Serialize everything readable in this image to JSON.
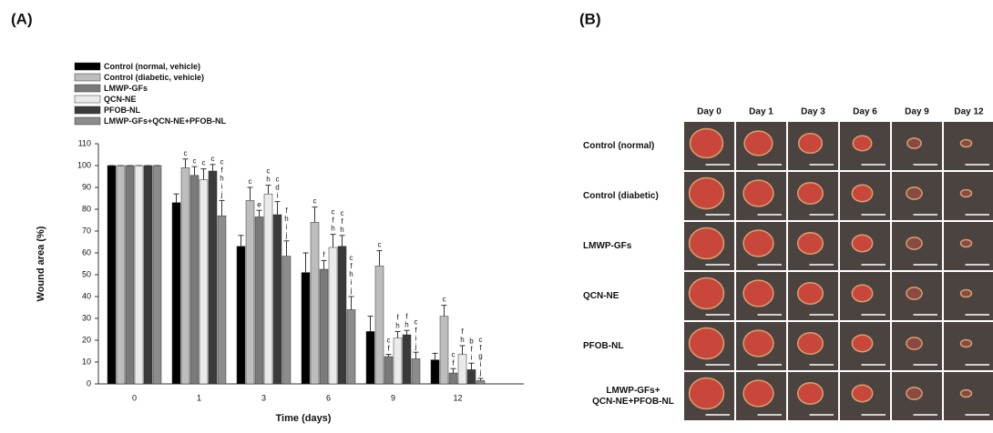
{
  "panels": {
    "a": "(A)",
    "b": "(B)"
  },
  "chart_data": {
    "type": "bar",
    "y_label": "Wound area (%)",
    "x_label": "Time (days)",
    "categories": [
      "0",
      "1",
      "3",
      "6",
      "9",
      "12"
    ],
    "ylim": [
      0,
      110
    ],
    "yticks": [
      0,
      10,
      20,
      30,
      40,
      50,
      60,
      70,
      80,
      90,
      100,
      110
    ],
    "series": [
      {
        "name": "Control (normal, vehicle)",
        "color": "#000000",
        "values": [
          100,
          83,
          63,
          51,
          24,
          11
        ],
        "errors": [
          0,
          4,
          5,
          9,
          7,
          3
        ],
        "letters": [
          null,
          null,
          null,
          null,
          null,
          null
        ]
      },
      {
        "name": "Control (diabetic, vehicle)",
        "color": "#bdbdbd",
        "values": [
          100,
          99,
          84,
          74,
          54,
          31
        ],
        "errors": [
          0,
          4,
          6,
          7,
          7,
          5
        ],
        "letters": [
          null,
          [
            "c"
          ],
          [
            "c"
          ],
          [
            "c"
          ],
          [
            "c"
          ],
          [
            "c"
          ]
        ]
      },
      {
        "name": "LMWP-GFs",
        "color": "#7a7a7a",
        "values": [
          100,
          95.5,
          76.5,
          52.5,
          12.5,
          5
        ],
        "errors": [
          0,
          4,
          3,
          4,
          1,
          2
        ],
        "letters": [
          null,
          [
            "c"
          ],
          [
            "e"
          ],
          [
            "f"
          ],
          [
            "c",
            "f"
          ],
          [
            "c",
            "f"
          ]
        ]
      },
      {
        "name": "QCN-NE",
        "color": "#eaeaea",
        "values": [
          100,
          93.5,
          87,
          62.5,
          21,
          13.5
        ],
        "errors": [
          0,
          5,
          4,
          6,
          3,
          4
        ],
        "letters": [
          null,
          [
            "c"
          ],
          [
            "c",
            "h"
          ],
          [
            "c",
            "f",
            "h"
          ],
          [
            "f",
            "h"
          ],
          [
            "f",
            "h"
          ]
        ]
      },
      {
        "name": "PFOB-NL",
        "color": "#3a3a3a",
        "values": [
          100,
          97.5,
          77.5,
          63,
          22.5,
          6.5
        ],
        "errors": [
          0,
          3,
          6,
          5,
          2,
          3
        ],
        "letters": [
          null,
          [
            "c"
          ],
          [
            "c",
            "d",
            "i"
          ],
          [
            "c",
            "f",
            "h"
          ],
          [
            "f",
            "h"
          ],
          [
            "b",
            "f",
            "i"
          ]
        ]
      },
      {
        "name": "LMWP-GFs+QCN-NE+PFOB-NL",
        "color": "#8c8c8c",
        "values": [
          100,
          77,
          58.5,
          34,
          11.5,
          1.5
        ],
        "errors": [
          0,
          7,
          7,
          6,
          3,
          1
        ],
        "letters": [
          null,
          [
            "c",
            "f",
            "h",
            "i",
            "j"
          ],
          [
            "f",
            "h",
            "i",
            "j"
          ],
          [
            "c",
            "f",
            "h",
            "i",
            "j"
          ],
          [
            "c",
            "f",
            "i",
            "j"
          ],
          [
            "c",
            "f",
            "g",
            "i",
            "j"
          ]
        ]
      }
    ]
  },
  "photo_grid": {
    "columns": [
      "Day 0",
      "Day 1",
      "Day 3",
      "Day 6",
      "Day 9",
      "Day 12"
    ],
    "rows": [
      [
        "Control (normal)"
      ],
      [
        "Control (diabetic)"
      ],
      [
        "LMWP-GFs"
      ],
      [
        "QCN-NE"
      ],
      [
        "PFOB-NL"
      ],
      [
        "LMWP-GFs+",
        "QCN-NE+PFOB-NL"
      ]
    ]
  }
}
